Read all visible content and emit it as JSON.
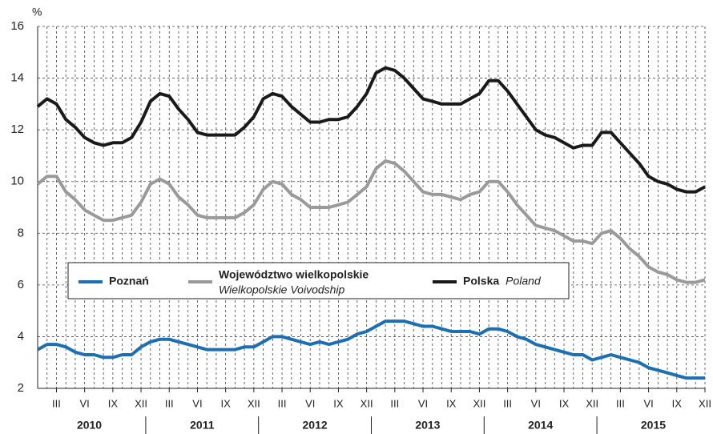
{
  "chart_data": {
    "type": "line",
    "y_label": "%",
    "ylim": [
      2,
      16
    ],
    "yticks": [
      2,
      4,
      6,
      8,
      10,
      12,
      14,
      16
    ],
    "grid": true,
    "years": [
      "2010",
      "2011",
      "2012",
      "2013",
      "2014",
      "2015"
    ],
    "categories": [
      null,
      null,
      "III",
      null,
      null,
      "VI",
      null,
      null,
      "IX",
      null,
      null,
      "XII",
      null,
      null,
      "III",
      null,
      null,
      "VI",
      null,
      null,
      "IX",
      null,
      null,
      "XII",
      null,
      null,
      "III",
      null,
      null,
      "VI",
      null,
      null,
      "IX",
      null,
      null,
      "XII",
      null,
      null,
      "III",
      null,
      null,
      "VI",
      null,
      null,
      "IX",
      null,
      null,
      "XII",
      null,
      null,
      "III",
      null,
      null,
      "VI",
      null,
      null,
      "IX",
      null,
      null,
      "XII",
      null,
      null,
      "III",
      null,
      null,
      "VI",
      null,
      null,
      "IX",
      null,
      null,
      "XII"
    ],
    "series": [
      {
        "name": "Poznań",
        "color": "#1a6fb5",
        "values": [
          3.5,
          3.7,
          3.7,
          3.6,
          3.4,
          3.3,
          3.3,
          3.2,
          3.2,
          3.3,
          3.3,
          3.6,
          3.8,
          3.9,
          3.9,
          3.8,
          3.7,
          3.6,
          3.5,
          3.5,
          3.5,
          3.5,
          3.6,
          3.6,
          3.8,
          4.0,
          4.0,
          3.9,
          3.8,
          3.7,
          3.8,
          3.7,
          3.8,
          3.9,
          4.1,
          4.2,
          4.4,
          4.6,
          4.6,
          4.6,
          4.5,
          4.4,
          4.4,
          4.3,
          4.2,
          4.2,
          4.2,
          4.1,
          4.3,
          4.3,
          4.2,
          4.0,
          3.9,
          3.7,
          3.6,
          3.5,
          3.4,
          3.3,
          3.3,
          3.1,
          3.2,
          3.3,
          3.2,
          3.1,
          3.0,
          2.8,
          2.7,
          2.6,
          2.5,
          2.4,
          2.4,
          2.4
        ]
      },
      {
        "name": "Województwo wielkopolskie",
        "name_en": "Wielkopolskie Voivodship",
        "color": "#9a9a9a",
        "values": [
          9.9,
          10.2,
          10.2,
          9.6,
          9.3,
          8.9,
          8.7,
          8.5,
          8.5,
          8.6,
          8.7,
          9.2,
          9.9,
          10.1,
          9.9,
          9.4,
          9.1,
          8.7,
          8.6,
          8.6,
          8.6,
          8.6,
          8.8,
          9.1,
          9.7,
          10.0,
          9.9,
          9.5,
          9.3,
          9.0,
          9.0,
          9.0,
          9.1,
          9.2,
          9.5,
          9.8,
          10.5,
          10.8,
          10.7,
          10.4,
          10.0,
          9.6,
          9.5,
          9.5,
          9.4,
          9.3,
          9.5,
          9.6,
          10.0,
          10.0,
          9.6,
          9.1,
          8.7,
          8.3,
          8.2,
          8.1,
          7.9,
          7.7,
          7.7,
          7.6,
          8.0,
          8.1,
          7.8,
          7.4,
          7.1,
          6.7,
          6.5,
          6.4,
          6.2,
          6.1,
          6.1,
          6.2
        ]
      },
      {
        "name": "Polska",
        "name_en": "Poland",
        "color": "#1a1a1a",
        "values": [
          12.9,
          13.2,
          13.0,
          12.4,
          12.1,
          11.7,
          11.5,
          11.4,
          11.5,
          11.5,
          11.7,
          12.3,
          13.1,
          13.4,
          13.3,
          12.8,
          12.4,
          11.9,
          11.8,
          11.8,
          11.8,
          11.8,
          12.1,
          12.5,
          13.2,
          13.4,
          13.3,
          12.9,
          12.6,
          12.3,
          12.3,
          12.4,
          12.4,
          12.5,
          12.9,
          13.4,
          14.2,
          14.4,
          14.3,
          14.0,
          13.6,
          13.2,
          13.1,
          13.0,
          13.0,
          13.0,
          13.2,
          13.4,
          13.9,
          13.9,
          13.5,
          13.0,
          12.5,
          12.0,
          11.8,
          11.7,
          11.5,
          11.3,
          11.4,
          11.4,
          11.9,
          11.9,
          11.5,
          11.1,
          10.7,
          10.2,
          10.0,
          9.9,
          9.7,
          9.6,
          9.6,
          9.8
        ]
      }
    ]
  }
}
